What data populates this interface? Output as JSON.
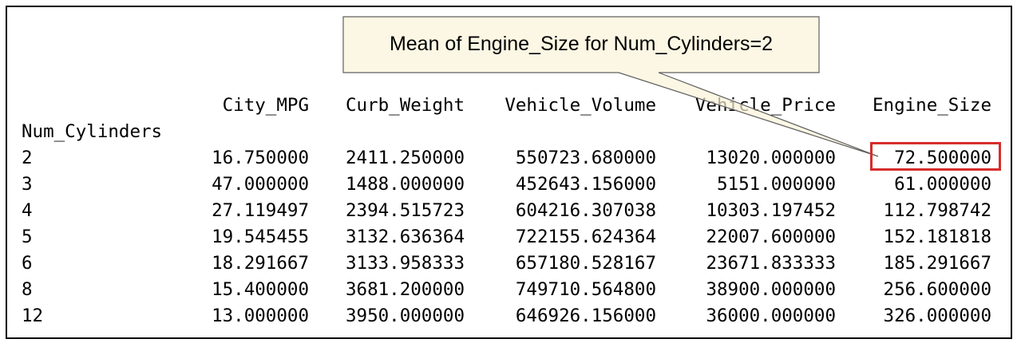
{
  "callout": {
    "text": "Mean of Engine_Size for Num_Cylinders=2"
  },
  "table": {
    "index_name": "Num_Cylinders",
    "columns": [
      "City_MPG",
      "Curb_Weight",
      "Vehicle_Volume",
      "Vehicle_Price",
      "Engine_Size"
    ],
    "rows": [
      {
        "index": "2",
        "values": [
          "16.750000",
          "2411.250000",
          "550723.680000",
          "13020.000000",
          "72.500000"
        ]
      },
      {
        "index": "3",
        "values": [
          "47.000000",
          "1488.000000",
          "452643.156000",
          "5151.000000",
          "61.000000"
        ]
      },
      {
        "index": "4",
        "values": [
          "27.119497",
          "2394.515723",
          "604216.307038",
          "10303.197452",
          "112.798742"
        ]
      },
      {
        "index": "5",
        "values": [
          "19.545455",
          "3132.636364",
          "722155.624364",
          "22007.600000",
          "152.181818"
        ]
      },
      {
        "index": "6",
        "values": [
          "18.291667",
          "3133.958333",
          "657180.528167",
          "23671.833333",
          "185.291667"
        ]
      },
      {
        "index": "8",
        "values": [
          "15.400000",
          "3681.200000",
          "749710.564800",
          "38900.000000",
          "256.600000"
        ]
      },
      {
        "index": "12",
        "values": [
          "13.000000",
          "3950.000000",
          "646926.156000",
          "36000.000000",
          "326.000000"
        ]
      }
    ]
  },
  "colors": {
    "highlight_border": "#d72c2c",
    "callout_fill": "#fbf3d9",
    "callout_border": "#5f5f5f"
  }
}
